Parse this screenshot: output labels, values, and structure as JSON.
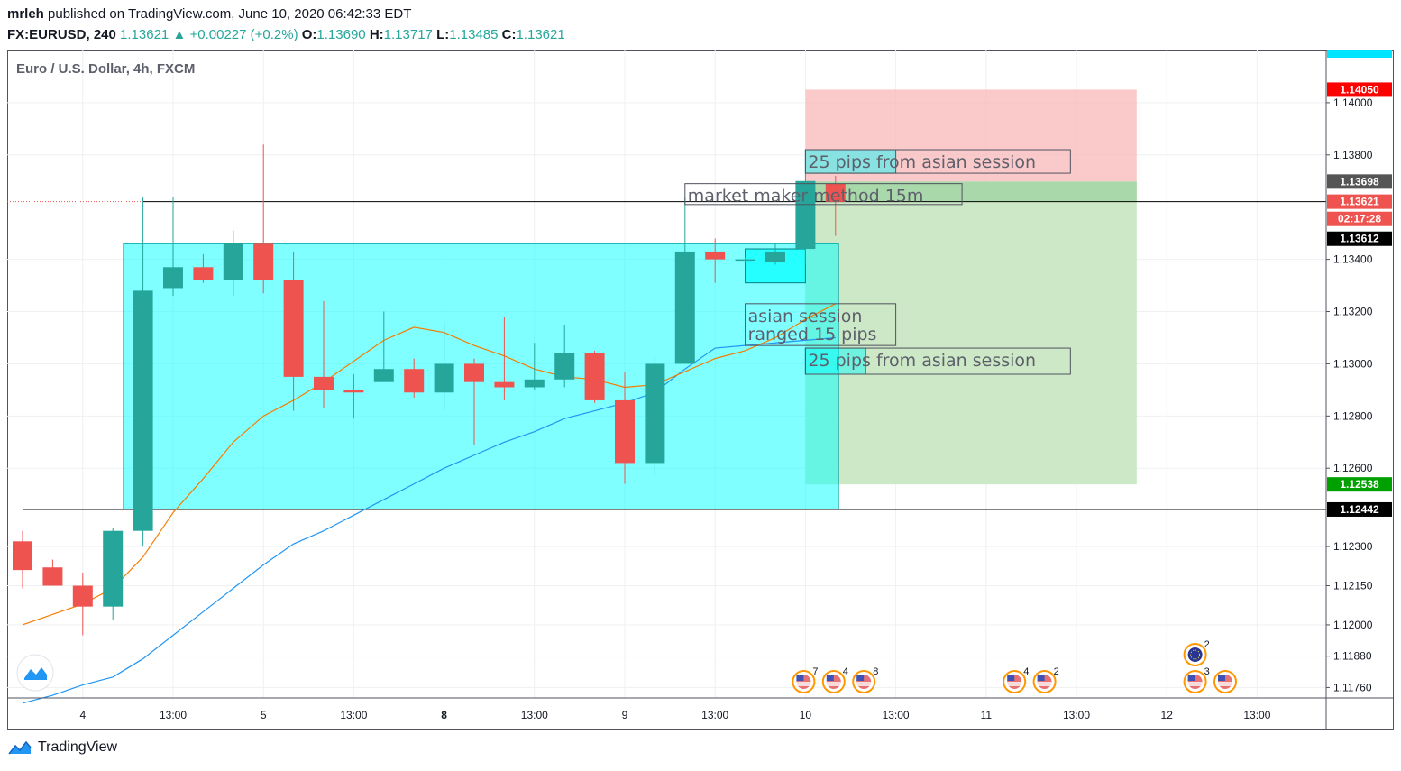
{
  "header": {
    "author": "mrleh",
    "published_text": "published on TradingView.com, June 10, 2020 06:42:33 EDT",
    "symbol_interval": "FX:EURUSD, 240",
    "last": "1.13621",
    "change_arrow": "▲",
    "change": "+0.00227 (+0.2%)",
    "o_label": "O:",
    "o_value": "1.13690",
    "h_label": "H:",
    "h_value": "1.13717",
    "l_label": "L:",
    "l_value": "1.13485",
    "c_label": "C:",
    "c_value": "1.13621"
  },
  "legend_title": "Euro / U.S. Dollar, 4h, FXCM",
  "footer": {
    "brand": "TradingView"
  },
  "colors": {
    "up": "#26a69a",
    "down": "#ef5350",
    "ema_fast": "#f57c00",
    "ema_slow": "#2196f3",
    "session_box": "#00ffff",
    "loss_zone": "#f8b8b8",
    "profit_zone": "#c8e6c0"
  },
  "chart_data": {
    "type": "candlestick",
    "ylim": [
      1.1172,
      1.142
    ],
    "y_ticks": [
      1.14,
      1.138,
      1.134,
      1.132,
      1.13,
      1.128,
      1.126,
      1.123,
      1.1215,
      1.12,
      1.1188,
      1.1176
    ],
    "x_ticks": [
      {
        "label": "4",
        "i": 2,
        "bold": false
      },
      {
        "label": "13:00",
        "i": 5,
        "bold": false
      },
      {
        "label": "5",
        "i": 8,
        "bold": false
      },
      {
        "label": "13:00",
        "i": 11,
        "bold": false
      },
      {
        "label": "8",
        "i": 14,
        "bold": true
      },
      {
        "label": "13:00",
        "i": 17,
        "bold": false
      },
      {
        "label": "9",
        "i": 20,
        "bold": false
      },
      {
        "label": "13:00",
        "i": 23,
        "bold": false
      },
      {
        "label": "10",
        "i": 26,
        "bold": false
      },
      {
        "label": "13:00",
        "i": 29,
        "bold": false
      },
      {
        "label": "11",
        "i": 32,
        "bold": false
      },
      {
        "label": "13:00",
        "i": 35,
        "bold": false
      },
      {
        "label": "12",
        "i": 38,
        "bold": false
      },
      {
        "label": "13:00",
        "i": 41,
        "bold": false
      }
    ],
    "candles": [
      {
        "o": 1.1232,
        "h": 1.1236,
        "l": 1.1214,
        "c": 1.1221
      },
      {
        "o": 1.1222,
        "h": 1.1225,
        "l": 1.1215,
        "c": 1.1215
      },
      {
        "o": 1.1215,
        "h": 1.122,
        "l": 1.1196,
        "c": 1.1207
      },
      {
        "o": 1.1207,
        "h": 1.1237,
        "l": 1.1202,
        "c": 1.1236
      },
      {
        "o": 1.1236,
        "h": 1.1364,
        "l": 1.123,
        "c": 1.1328
      },
      {
        "o": 1.1329,
        "h": 1.1364,
        "l": 1.1326,
        "c": 1.1337
      },
      {
        "o": 1.1337,
        "h": 1.1342,
        "l": 1.1331,
        "c": 1.1332
      },
      {
        "o": 1.1332,
        "h": 1.1351,
        "l": 1.1326,
        "c": 1.1346
      },
      {
        "o": 1.1346,
        "h": 1.1384,
        "l": 1.1327,
        "c": 1.1332
      },
      {
        "o": 1.1332,
        "h": 1.1343,
        "l": 1.1282,
        "c": 1.1295
      },
      {
        "o": 1.1295,
        "h": 1.1324,
        "l": 1.1283,
        "c": 1.129
      },
      {
        "o": 1.129,
        "h": 1.1296,
        "l": 1.1279,
        "c": 1.1289
      },
      {
        "o": 1.1293,
        "h": 1.132,
        "l": 1.1293,
        "c": 1.1298
      },
      {
        "o": 1.1298,
        "h": 1.1302,
        "l": 1.1287,
        "c": 1.1289
      },
      {
        "o": 1.1289,
        "h": 1.1316,
        "l": 1.1282,
        "c": 1.13
      },
      {
        "o": 1.13,
        "h": 1.1302,
        "l": 1.1269,
        "c": 1.1293
      },
      {
        "o": 1.1293,
        "h": 1.1318,
        "l": 1.1286,
        "c": 1.1291
      },
      {
        "o": 1.1291,
        "h": 1.1308,
        "l": 1.129,
        "c": 1.1294
      },
      {
        "o": 1.1294,
        "h": 1.1315,
        "l": 1.1291,
        "c": 1.1304
      },
      {
        "o": 1.1304,
        "h": 1.1305,
        "l": 1.1285,
        "c": 1.1286
      },
      {
        "o": 1.1286,
        "h": 1.1297,
        "l": 1.1254,
        "c": 1.1262
      },
      {
        "o": 1.1262,
        "h": 1.1303,
        "l": 1.1257,
        "c": 1.13
      },
      {
        "o": 1.13,
        "h": 1.1364,
        "l": 1.13,
        "c": 1.1343
      },
      {
        "o": 1.1343,
        "h": 1.1348,
        "l": 1.1331,
        "c": 1.134
      },
      {
        "o": 1.134,
        "h": 1.1341,
        "l": 1.1339,
        "c": 1.134
      },
      {
        "o": 1.1339,
        "h": 1.1346,
        "l": 1.1338,
        "c": 1.1343
      },
      {
        "o": 1.1344,
        "h": 1.1373,
        "l": 1.1338,
        "c": 1.137
      },
      {
        "o": 1.1369,
        "h": 1.1372,
        "l": 1.1349,
        "c": 1.1362
      }
    ],
    "ema_fast": [
      1.12,
      1.1204,
      1.1208,
      1.1214,
      1.1226,
      1.1243,
      1.1256,
      1.127,
      1.128,
      1.1286,
      1.1293,
      1.1301,
      1.1309,
      1.1314,
      1.1312,
      1.1307,
      1.1303,
      1.1298,
      1.1295,
      1.1294,
      1.1291,
      1.1292,
      1.1297,
      1.1302,
      1.1305,
      1.131,
      1.1317,
      1.1323
    ],
    "ema_slow": [
      1.117,
      1.1173,
      1.1177,
      1.118,
      1.1187,
      1.1196,
      1.1205,
      1.1214,
      1.1223,
      1.1231,
      1.1236,
      1.1242,
      1.1248,
      1.1254,
      1.126,
      1.1265,
      1.127,
      1.1274,
      1.1279,
      1.1282,
      1.1285,
      1.1289,
      1.1298,
      1.1306,
      1.1307,
      1.1308,
      1.1309,
      1.131
    ],
    "price_labels": [
      {
        "value": "1.14050",
        "price": 1.1405,
        "bg": "#ff0000",
        "fg": "#ffffff"
      },
      {
        "value": "1.13698",
        "price": 1.13698,
        "bg": "#555555",
        "fg": "#ffffff"
      },
      {
        "value": "1.13621",
        "price": 1.13621,
        "bg": "#ef5350",
        "fg": "#ffffff"
      },
      {
        "value": "02:17:28",
        "price": 1.13555,
        "bg": "#ef5350",
        "fg": "#ffffff"
      },
      {
        "value": "1.13612",
        "price": 1.13479,
        "bg": "#000000",
        "fg": "#ffffff"
      },
      {
        "value": "1.12538",
        "price": 1.12538,
        "bg": "#00a000",
        "fg": "#ffffff"
      },
      {
        "value": "1.12442",
        "price": 1.12442,
        "bg": "#000000",
        "fg": "#ffffff"
      }
    ],
    "range_box": {
      "i0": 3.35,
      "i1": 27.1,
      "top": 1.1346,
      "bottom": 1.12442
    },
    "position": {
      "i0": 26,
      "i1": 37,
      "entry": 1.13698,
      "stop": 1.1405,
      "target": 1.12538
    },
    "horizontal_lines": [
      {
        "price": 1.12442,
        "i0": 0,
        "i1": 43.9
      },
      {
        "price": 1.13621,
        "i0": 4.0,
        "i1": 43.9
      }
    ],
    "notes": [
      {
        "text": "25 pips from asian session",
        "i0": 26,
        "i1": 34.8,
        "price_top": 1.1382,
        "price_bot": 1.1373,
        "hl_i1": 29.0
      },
      {
        "text": "market maker method 15m",
        "i0": 22.0,
        "i1": 31.2,
        "price_top": 1.1369,
        "price_bot": 1.1361,
        "hl_i1": null
      },
      {
        "text": "asian session\nranged 15 pips",
        "i0": 24.0,
        "i1": 29.0,
        "price_top": 1.1323,
        "price_bot": 1.1307,
        "hl_i1": null
      },
      {
        "text": "25 pips from asian session",
        "i0": 26,
        "i1": 34.8,
        "price_top": 1.1306,
        "price_bot": 1.1296,
        "hl_i1": 28.0
      }
    ],
    "small_box": {
      "i0": 24.0,
      "i1": 26.0,
      "top": 1.1344,
      "bottom": 1.1331
    },
    "events": [
      {
        "i": 26.0,
        "count": "7",
        "kind": "us",
        "row": 0
      },
      {
        "i": 27.0,
        "count": "4",
        "kind": "us",
        "row": 0
      },
      {
        "i": 28.0,
        "count": "8",
        "kind": "us",
        "row": 0
      },
      {
        "i": 33.0,
        "count": "4",
        "kind": "us",
        "row": 0
      },
      {
        "i": 34.0,
        "count": "2",
        "kind": "us",
        "row": 0
      },
      {
        "i": 39.0,
        "count": "2",
        "kind": "eu",
        "row": 1
      },
      {
        "i": 39.0,
        "count": "3",
        "kind": "us",
        "row": 0
      },
      {
        "i": 40.0,
        "count": "",
        "kind": "us",
        "row": 0
      }
    ]
  }
}
